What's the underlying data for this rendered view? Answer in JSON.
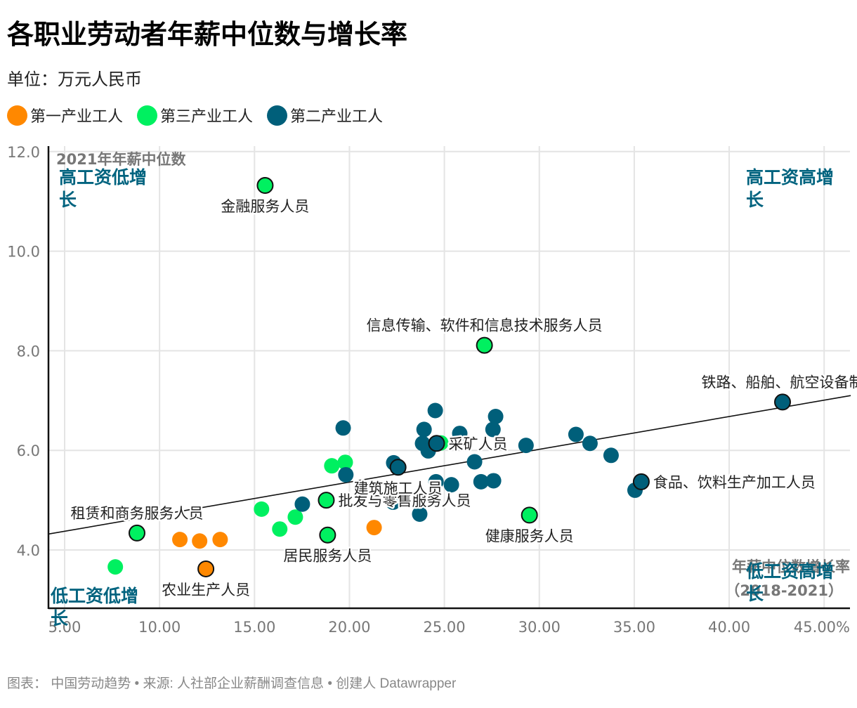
{
  "header": {
    "title": "各职业劳动者年薪中位数与增长率",
    "subtitle": "单位：万元人民币"
  },
  "legend": [
    {
      "label": "第一产业工人",
      "color": "#ff8800",
      "key": "primary"
    },
    {
      "label": "第三产业工人",
      "color": "#00f060",
      "key": "tertiary"
    },
    {
      "label": "第二产业工人",
      "color": "#005f7a",
      "key": "secondary"
    }
  ],
  "footer": "图表： 中国劳动趋势 • 来源: 人社部企业薪酬调查信息 • 创建人 Datawrapper",
  "chart_data": {
    "type": "scatter",
    "title": "各职业劳动者年薪中位数与增长率",
    "subtitle": "单位：万元人民币",
    "xlabel": "年薪中位数增长率（2018-2021）",
    "ylabel": "2021年年薪中位数",
    "xlim": [
      4.2,
      46.5
    ],
    "ylim": [
      2.85,
      12.2
    ],
    "x_ticks": [
      5,
      10,
      15,
      20,
      25,
      30,
      35,
      40,
      45
    ],
    "x_tick_labels": [
      "5.00",
      "10.00",
      "15.00",
      "20.00",
      "25.00",
      "30.00",
      "35.00",
      "40.00",
      "45.00%"
    ],
    "y_ticks": [
      4,
      6,
      8,
      10,
      12
    ],
    "y_tick_labels": [
      "4.0",
      "6.0",
      "8.0",
      "10.0",
      "12.0"
    ],
    "grid": true,
    "legend_position": "top-left",
    "quadrant_labels": [
      {
        "text": "高工资低增长",
        "position": "top-left"
      },
      {
        "text": "高工资高增长",
        "position": "top-right"
      },
      {
        "text": "低工资低增长",
        "position": "bottom-left"
      },
      {
        "text": "低工资高增长",
        "position": "bottom-right"
      }
    ],
    "trendline": {
      "x": [
        4.15,
        46.4
      ],
      "y": [
        4.32,
        7.1
      ]
    },
    "series": [
      {
        "name": "第一产业工人",
        "color": "#ff8800",
        "points": [
          {
            "x": 11.07,
            "y": 4.21
          },
          {
            "x": 12.11,
            "y": 4.18
          },
          {
            "x": 13.19,
            "y": 4.21
          },
          {
            "x": 12.44,
            "y": 3.62,
            "label": "农业生产人员",
            "lx": 0,
            "ly": 1,
            "anchor": "middle"
          },
          {
            "x": 21.3,
            "y": 4.45
          }
        ]
      },
      {
        "name": "第三产业工人",
        "color": "#00f060",
        "points": [
          {
            "x": 7.67,
            "y": 3.66
          },
          {
            "x": 8.81,
            "y": 4.34,
            "label": "租赁和商务服务人员",
            "lx": 0,
            "ly": -1,
            "anchor": "middle"
          },
          {
            "x": 15.56,
            "y": 11.32,
            "label": "金融服务人员",
            "lx": 0,
            "ly": 1,
            "anchor": "middle"
          },
          {
            "x": 15.37,
            "y": 4.82
          },
          {
            "x": 16.33,
            "y": 4.42
          },
          {
            "x": 17.15,
            "y": 4.66
          },
          {
            "x": 19.07,
            "y": 5.69
          },
          {
            "x": 19.78,
            "y": 5.76
          },
          {
            "x": 24.81,
            "y": 6.15
          },
          {
            "x": 18.78,
            "y": 5.0,
            "label": "批发与零售服务人员",
            "lx": 1,
            "ly": 0,
            "anchor": "start"
          },
          {
            "x": 18.85,
            "y": 4.3,
            "label": "居民服务人员",
            "lx": 0,
            "ly": 1,
            "anchor": "middle"
          },
          {
            "x": 27.11,
            "y": 8.11,
            "label": "信息传输、软件和信息技术服务人员",
            "lx": 0,
            "ly": -1,
            "anchor": "middle"
          },
          {
            "x": 29.48,
            "y": 4.7,
            "label": "健康服务人员",
            "lx": 0,
            "ly": 1,
            "anchor": "middle"
          }
        ]
      },
      {
        "name": "第二产业工人",
        "color": "#005f7a",
        "points": [
          {
            "x": 19.67,
            "y": 6.45
          },
          {
            "x": 19.81,
            "y": 5.51
          },
          {
            "x": 17.52,
            "y": 4.92
          },
          {
            "x": 22.33,
            "y": 5.75
          },
          {
            "x": 22.3,
            "y": 4.96
          },
          {
            "x": 23.7,
            "y": 4.72
          },
          {
            "x": 23.93,
            "y": 6.42
          },
          {
            "x": 23.85,
            "y": 6.14
          },
          {
            "x": 24.15,
            "y": 5.99
          },
          {
            "x": 24.52,
            "y": 6.8
          },
          {
            "x": 24.56,
            "y": 5.37
          },
          {
            "x": 25.37,
            "y": 5.31
          },
          {
            "x": 25.81,
            "y": 6.34
          },
          {
            "x": 26.59,
            "y": 5.77
          },
          {
            "x": 26.93,
            "y": 5.37
          },
          {
            "x": 27.59,
            "y": 5.39
          },
          {
            "x": 27.56,
            "y": 6.42
          },
          {
            "x": 27.7,
            "y": 6.68
          },
          {
            "x": 29.3,
            "y": 6.1
          },
          {
            "x": 31.93,
            "y": 6.32
          },
          {
            "x": 32.67,
            "y": 6.14
          },
          {
            "x": 33.78,
            "y": 5.9
          },
          {
            "x": 35.04,
            "y": 5.2
          },
          {
            "x": 22.56,
            "y": 5.66,
            "label": "建筑施工人员",
            "lx": 0,
            "ly": 1,
            "anchor": "middle"
          },
          {
            "x": 24.59,
            "y": 6.14,
            "label": "采矿人员",
            "lx": 1,
            "ly": 0,
            "anchor": "start"
          },
          {
            "x": 35.37,
            "y": 5.37,
            "label": "食品、饮料生产加工人员",
            "lx": 1,
            "ly": 0,
            "anchor": "start"
          },
          {
            "x": 42.81,
            "y": 6.97,
            "label": "铁路、船舶、航空设备制",
            "lx": 0,
            "ly": -1,
            "anchor": "middle"
          }
        ]
      }
    ]
  }
}
